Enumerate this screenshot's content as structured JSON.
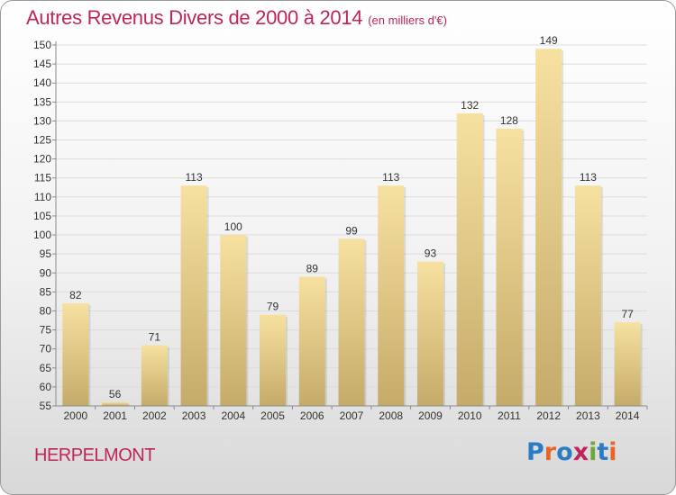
{
  "title": "Autres Revenus Divers de 2000 à 2014",
  "title_unit": "(en milliers d'€)",
  "commune": "HERPELMONT",
  "logo_text": "Proxiti",
  "colors": {
    "title": "#c0255a",
    "bar_light": "#f7e1a0",
    "bar_dark": "#c5ab6a",
    "axis": "#8a8a8a",
    "grid": "#dcdcdc",
    "logo": [
      "#2b7cc4",
      "#e8652a",
      "#2b7cc4",
      "#c0255a",
      "#6aa83a",
      "#2b7cc4",
      "#e8652a"
    ]
  },
  "chart_data": {
    "type": "bar",
    "title": "Autres Revenus Divers de 2000 à 2014",
    "categories": [
      "2000",
      "2001",
      "2002",
      "2003",
      "2004",
      "2005",
      "2006",
      "2007",
      "2008",
      "2009",
      "2010",
      "2011",
      "2012",
      "2013",
      "2014"
    ],
    "values": [
      82,
      56,
      71,
      113,
      100,
      79,
      89,
      99,
      113,
      93,
      132,
      128,
      149,
      113,
      77
    ],
    "ylim": [
      55,
      150
    ],
    "yticks": [
      55,
      60,
      65,
      70,
      75,
      80,
      85,
      90,
      95,
      100,
      105,
      110,
      115,
      120,
      125,
      130,
      135,
      140,
      145,
      150
    ],
    "grid": true,
    "data_labels": true
  }
}
